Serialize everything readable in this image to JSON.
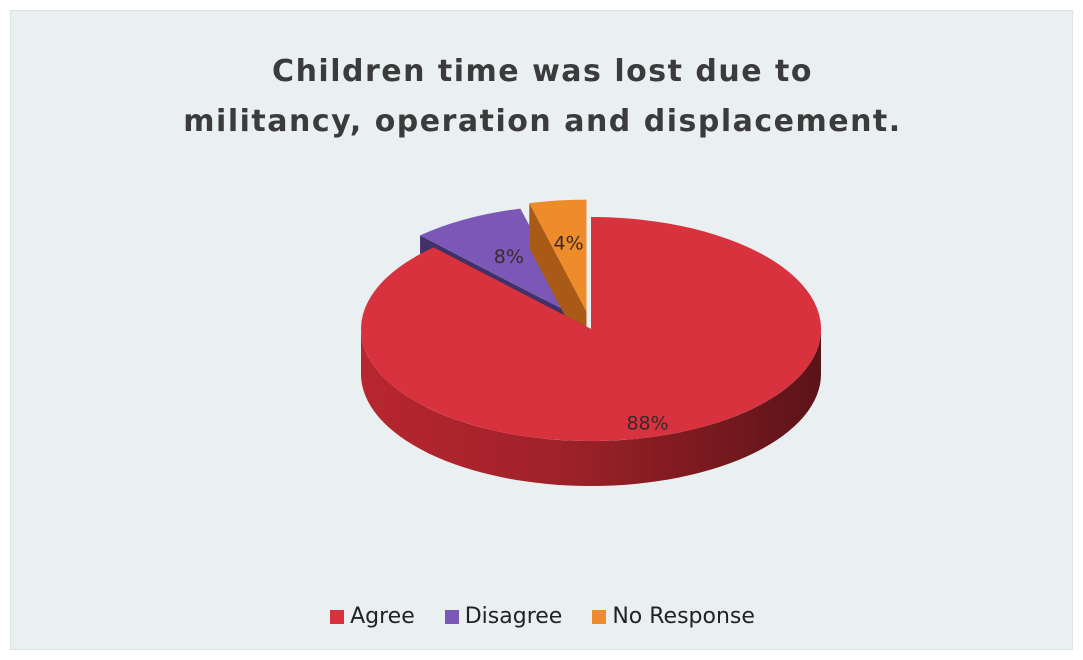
{
  "chart_data": {
    "type": "pie",
    "title_lines": [
      "Children time was lost due to",
      "militancy, operation and displacement."
    ],
    "categories": [
      "Agree",
      "Disagree",
      "No Response"
    ],
    "values": [
      88,
      8,
      4
    ],
    "labels": [
      "88%",
      "8%",
      "4%"
    ],
    "colors": [
      "#d8323e",
      "#7b58b8",
      "#ee8b2a"
    ],
    "side_colors": [
      "#8a1f26",
      "#41306a",
      "#a85a16"
    ],
    "style": "3d-exploded",
    "legend_position": "bottom"
  }
}
